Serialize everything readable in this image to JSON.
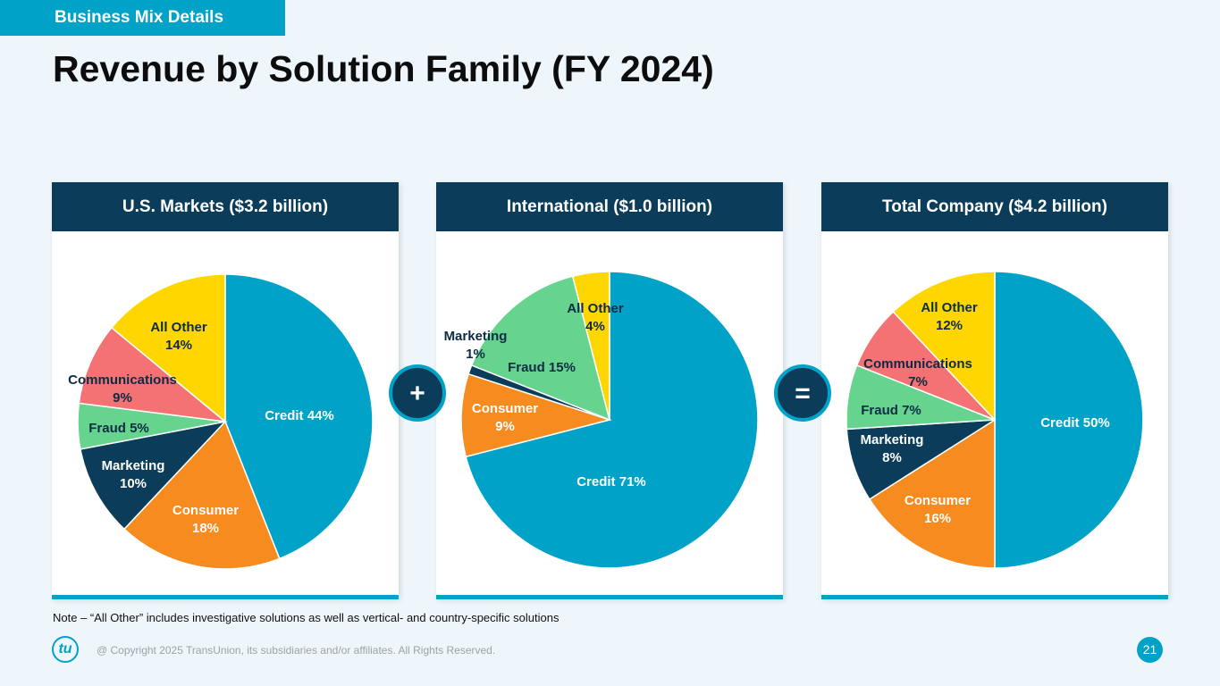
{
  "slide": {
    "section": "Business Mix Details",
    "title": "Revenue by Solution Family (FY 2024)",
    "note": "Note – “All Other” includes investigative solutions as well as vertical- and country-specific solutions",
    "copyright": "@ Copyright 2025 TransUnion, its subsidiaries and/or affiliates.  All Rights Reserved.",
    "logo": "tu",
    "page": "21",
    "operators": [
      "+",
      "="
    ]
  },
  "chart_data": [
    {
      "type": "pie",
      "title": "U.S. Markets ($3.2 billion)",
      "categories": [
        "Credit",
        "Consumer",
        "Marketing",
        "Fraud",
        "Communications",
        "All Other"
      ],
      "values": [
        44,
        18,
        10,
        5,
        9,
        14
      ],
      "value_labels": [
        "44%",
        "18%",
        "10%",
        "5%",
        "9%",
        "14%"
      ],
      "colors": [
        "#00a3c7",
        "#f68b1f",
        "#0b3d5b",
        "#66d48f",
        "#f47174",
        "#ffd600"
      ]
    },
    {
      "type": "pie",
      "title": "International ($1.0 billion)",
      "categories": [
        "Credit",
        "Consumer",
        "Marketing",
        "Fraud",
        "All Other"
      ],
      "values": [
        71,
        9,
        1,
        15,
        4
      ],
      "value_labels": [
        "71%",
        "9%",
        "1%",
        "15%",
        "4%"
      ],
      "colors": [
        "#00a3c7",
        "#f68b1f",
        "#0b3d5b",
        "#66d48f",
        "#ffd600"
      ]
    },
    {
      "type": "pie",
      "title": "Total Company ($4.2 billion)",
      "categories": [
        "Credit",
        "Consumer",
        "Marketing",
        "Fraud",
        "Communications",
        "All Other"
      ],
      "values": [
        50,
        16,
        8,
        7,
        7,
        12
      ],
      "value_labels": [
        "50%",
        "16%",
        "8%",
        "7%",
        "7%",
        "12%"
      ],
      "colors": [
        "#00a3c7",
        "#f68b1f",
        "#0b3d5b",
        "#66d48f",
        "#f47174",
        "#ffd600"
      ]
    }
  ]
}
